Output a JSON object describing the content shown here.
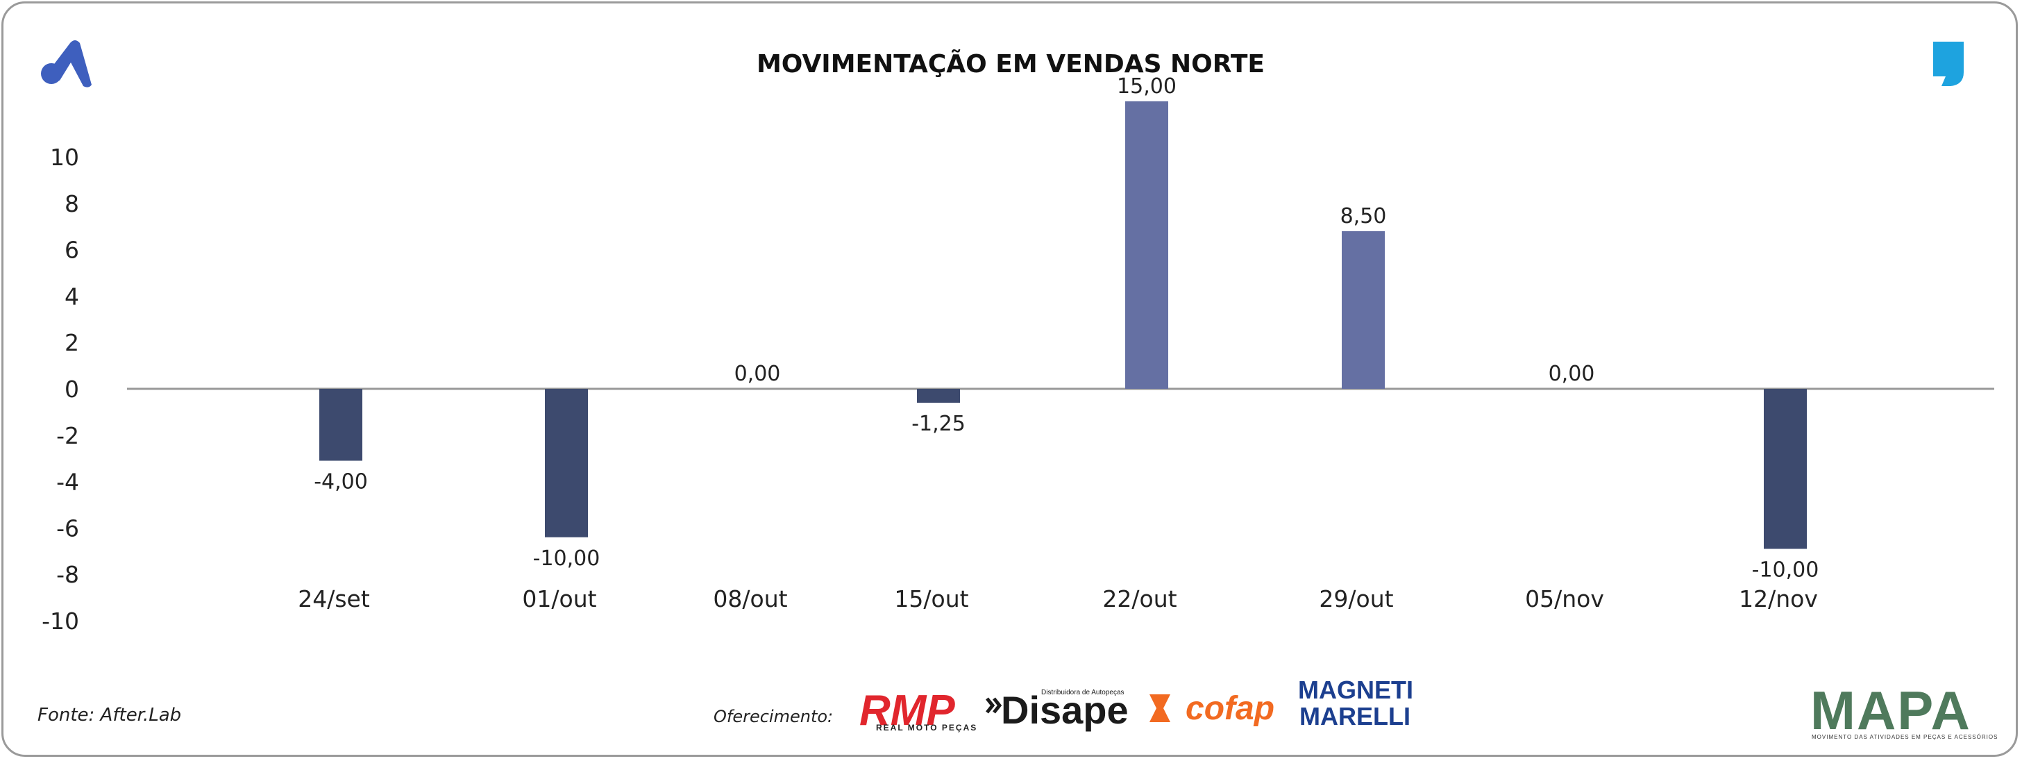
{
  "chart_data": {
    "type": "bar",
    "title": "MOVIMENTAÇÃO EM VENDAS NORTE",
    "categories": [
      "24/set",
      "01/out",
      "08/out",
      "15/out",
      "22/out",
      "29/out",
      "05/nov",
      "12/nov"
    ],
    "values": [
      -4.0,
      -10.0,
      0.0,
      -1.25,
      15.0,
      8.5,
      0.0,
      -10.0
    ],
    "display_values": [
      -3.1,
      -6.4,
      0.0,
      -0.6,
      12.4,
      6.8,
      0.0,
      -6.9
    ],
    "data_labels": [
      "-4,00",
      "-10,00",
      "0,00",
      "-1,25",
      "15,00",
      "8,50",
      "0,00",
      "-10,00"
    ],
    "y_ticks": [
      "10",
      "8",
      "6",
      "4",
      "2",
      "0",
      "-2",
      "-4",
      "-6",
      "-8",
      "-10"
    ],
    "ylim": [
      -10,
      10
    ],
    "grid": false,
    "colors": {
      "positive": "#6570a3",
      "negative": "#3d4a6e",
      "axis": "#999999"
    }
  },
  "footer": {
    "source": "Fonte: After.Lab",
    "offer_label": "Oferecimento:"
  },
  "sponsors": {
    "rmp": "RMP",
    "rmp_sub": "REAL MOTO PEÇAS",
    "disape": "Disape",
    "disape_sub": "Distribuidora de Autopeças",
    "cofap": "cofap",
    "magneti": "MAGNETI",
    "marelli": "MARELLI"
  },
  "brand": {
    "mapa": "MAPA",
    "mapa_sub": "MOVIMENTO DAS ATIVIDADES EM PEÇAS E ACESSÓRIOS",
    "left_logo_icon": "a-logo-icon",
    "right_logo_icon": "quote-mark-icon",
    "left_logo_color": "#3e5fbe",
    "right_logo_color": "#1ea3df"
  }
}
